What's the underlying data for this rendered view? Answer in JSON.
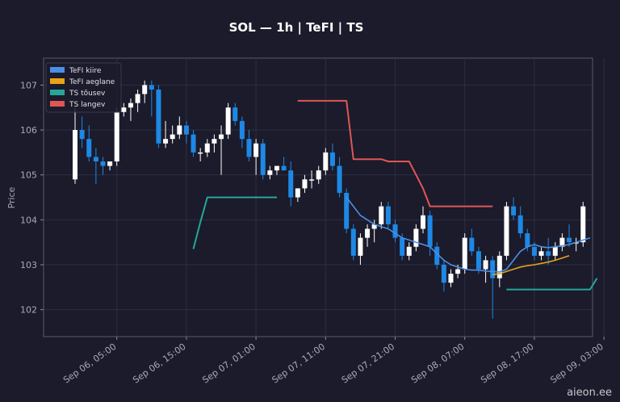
{
  "chart_data": {
    "type": "candlestick",
    "title": "SOL — 1h  |  TeFI  |  TS",
    "ylabel": "Price",
    "xlabel": "",
    "ylim": [
      101.4,
      107.6
    ],
    "yticks": [
      102,
      103,
      104,
      105,
      106,
      107
    ],
    "x_ticks": [
      {
        "label": "Sep 06, 05:00",
        "i": 6
      },
      {
        "label": "Sep 06, 15:00",
        "i": 16
      },
      {
        "label": "Sep 07, 01:00",
        "i": 26
      },
      {
        "label": "Sep 07, 11:00",
        "i": 36
      },
      {
        "label": "Sep 07, 21:00",
        "i": 46
      },
      {
        "label": "Sep 08, 07:00",
        "i": 56
      },
      {
        "label": "Sep 08, 17:00",
        "i": 66
      },
      {
        "label": "Sep 09, 03:00",
        "i": 76
      }
    ],
    "grid": true,
    "legend_position": "top-left",
    "colors": {
      "up": "#ffffff",
      "down": "#1e88e5",
      "fast": "#4c8fe6",
      "slow": "#e8a317",
      "ts_up": "#26a69a",
      "ts_down": "#e05656"
    },
    "legend": [
      {
        "label": "TeFI kiire",
        "color": "#4c8fe6"
      },
      {
        "label": "TeFI aeglane",
        "color": "#e8a317"
      },
      {
        "label": "TS tõusev",
        "color": "#26a69a"
      },
      {
        "label": "TS langev",
        "color": "#e05656"
      }
    ],
    "candles": [
      [
        104.9,
        106.5,
        104.8,
        106.0
      ],
      [
        106.0,
        106.3,
        105.6,
        105.8
      ],
      [
        105.8,
        106.1,
        105.3,
        105.4
      ],
      [
        105.4,
        105.6,
        104.8,
        105.3
      ],
      [
        105.3,
        105.4,
        105.0,
        105.2
      ],
      [
        105.2,
        105.3,
        105.1,
        105.3
      ],
      [
        105.3,
        106.5,
        105.2,
        106.4
      ],
      [
        106.4,
        106.6,
        106.3,
        106.5
      ],
      [
        106.5,
        106.7,
        106.2,
        106.6
      ],
      [
        106.6,
        106.9,
        106.4,
        106.8
      ],
      [
        106.8,
        107.1,
        106.6,
        107.0
      ],
      [
        107.0,
        107.1,
        106.3,
        106.9
      ],
      [
        106.9,
        107.0,
        105.6,
        105.7
      ],
      [
        105.7,
        106.2,
        105.6,
        105.8
      ],
      [
        105.8,
        106.1,
        105.7,
        105.9
      ],
      [
        105.9,
        106.3,
        105.8,
        106.1
      ],
      [
        106.1,
        106.2,
        105.7,
        105.9
      ],
      [
        105.9,
        106.0,
        105.4,
        105.5
      ],
      [
        105.5,
        105.6,
        105.3,
        105.5
      ],
      [
        105.5,
        105.8,
        105.4,
        105.7
      ],
      [
        105.7,
        105.9,
        105.5,
        105.8
      ],
      [
        105.8,
        106.1,
        105.0,
        105.9
      ],
      [
        105.9,
        106.6,
        105.8,
        106.5
      ],
      [
        106.5,
        106.6,
        106.1,
        106.2
      ],
      [
        106.2,
        106.3,
        105.6,
        105.8
      ],
      [
        105.8,
        106.0,
        105.3,
        105.4
      ],
      [
        105.4,
        105.8,
        105.0,
        105.7
      ],
      [
        105.7,
        105.8,
        104.9,
        105.0
      ],
      [
        105.0,
        105.2,
        104.9,
        105.1
      ],
      [
        105.1,
        105.2,
        105.0,
        105.2
      ],
      [
        105.2,
        105.4,
        105.1,
        105.1
      ],
      [
        105.1,
        105.3,
        104.3,
        104.5
      ],
      [
        104.5,
        104.7,
        104.4,
        104.7
      ],
      [
        104.7,
        105.0,
        104.6,
        104.9
      ],
      [
        104.9,
        105.1,
        104.7,
        104.9
      ],
      [
        104.9,
        105.2,
        104.8,
        105.1
      ],
      [
        105.1,
        105.6,
        105.0,
        105.5
      ],
      [
        105.5,
        105.7,
        105.1,
        105.2
      ],
      [
        105.2,
        105.4,
        104.5,
        104.6
      ],
      [
        104.6,
        104.7,
        103.7,
        103.8
      ],
      [
        103.8,
        103.9,
        103.1,
        103.2
      ],
      [
        103.2,
        103.7,
        103.0,
        103.6
      ],
      [
        103.6,
        103.9,
        103.4,
        103.8
      ],
      [
        103.8,
        104.0,
        103.5,
        103.9
      ],
      [
        103.9,
        104.4,
        103.8,
        104.3
      ],
      [
        104.3,
        104.4,
        103.8,
        103.9
      ],
      [
        103.9,
        104.0,
        103.5,
        103.6
      ],
      [
        103.6,
        103.7,
        103.1,
        103.2
      ],
      [
        103.2,
        103.5,
        103.1,
        103.4
      ],
      [
        103.4,
        103.9,
        103.3,
        103.8
      ],
      [
        103.8,
        104.3,
        103.7,
        104.1
      ],
      [
        104.1,
        104.2,
        103.2,
        103.4
      ],
      [
        103.4,
        103.5,
        102.9,
        103.0
      ],
      [
        103.0,
        103.1,
        102.4,
        102.6
      ],
      [
        102.6,
        102.9,
        102.5,
        102.8
      ],
      [
        102.8,
        103.0,
        102.7,
        102.9
      ],
      [
        102.9,
        103.7,
        102.8,
        103.6
      ],
      [
        103.6,
        103.8,
        103.2,
        103.3
      ],
      [
        103.3,
        103.4,
        102.8,
        102.9
      ],
      [
        102.9,
        103.2,
        102.6,
        103.1
      ],
      [
        103.1,
        103.2,
        101.8,
        102.7
      ],
      [
        102.7,
        103.3,
        102.5,
        103.2
      ],
      [
        103.2,
        104.4,
        103.1,
        104.3
      ],
      [
        104.3,
        104.5,
        104.0,
        104.1
      ],
      [
        104.1,
        104.3,
        103.6,
        103.7
      ],
      [
        103.7,
        103.8,
        103.3,
        103.4
      ],
      [
        103.4,
        103.5,
        103.1,
        103.2
      ],
      [
        103.2,
        103.4,
        103.1,
        103.3
      ],
      [
        103.3,
        103.6,
        103.0,
        103.2
      ],
      [
        103.2,
        103.5,
        103.1,
        103.4
      ],
      [
        103.4,
        103.7,
        103.3,
        103.6
      ],
      [
        103.6,
        103.9,
        103.4,
        103.5
      ],
      [
        103.5,
        103.6,
        103.3,
        103.5
      ],
      [
        103.5,
        104.4,
        103.4,
        104.3
      ]
    ],
    "tefi_fast": {
      "start": 39,
      "values": [
        104.5,
        104.3,
        104.1,
        104.0,
        103.9,
        103.85,
        103.8,
        103.7,
        103.6,
        103.55,
        103.5,
        103.45,
        103.4,
        103.25,
        103.1,
        103.0,
        102.95,
        102.9,
        102.88,
        102.88,
        102.86,
        102.85,
        102.84,
        102.9,
        103.1,
        103.3,
        103.4,
        103.45,
        103.4,
        103.38,
        103.4,
        103.42,
        103.45,
        103.5,
        103.55,
        103.6
      ]
    },
    "tefi_slow": {
      "start": 60,
      "values": [
        102.78,
        102.8,
        102.85,
        102.9,
        102.95,
        102.98,
        103.0,
        103.03,
        103.06,
        103.1,
        103.15,
        103.2
      ]
    },
    "ts_up": [
      {
        "start": 17,
        "values": [
          103.35,
          103.95,
          104.5,
          104.5,
          104.5,
          104.5,
          104.5,
          104.5,
          104.5,
          104.5,
          104.5,
          104.5,
          104.5
        ]
      },
      {
        "start": 62,
        "values": [
          102.45,
          102.45,
          102.45,
          102.45,
          102.45,
          102.45,
          102.45,
          102.45,
          102.45,
          102.45,
          102.45,
          102.45,
          102.45,
          102.7
        ]
      }
    ],
    "ts_down": [
      {
        "start": 32,
        "values": [
          106.65,
          106.65,
          106.65,
          106.65,
          106.65,
          106.65,
          106.65,
          106.65,
          105.35,
          105.35,
          105.35,
          105.35,
          105.35,
          105.3,
          105.3,
          105.3,
          105.3,
          105.0,
          104.7,
          104.3,
          104.3,
          104.3,
          104.3,
          104.3,
          104.3,
          104.3,
          104.3,
          104.3,
          104.3
        ]
      }
    ]
  },
  "watermark": "aieon.ee"
}
